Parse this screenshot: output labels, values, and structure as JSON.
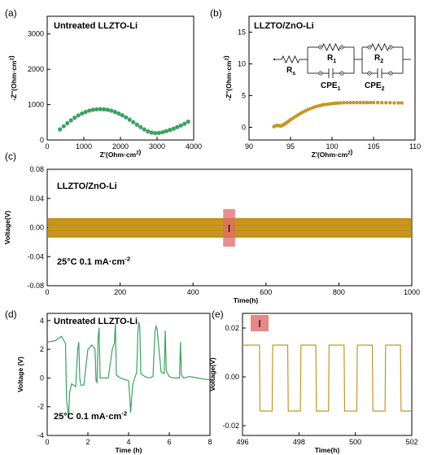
{
  "colors": {
    "green": "#3aa35f",
    "gold": "#c8961e",
    "highlight": "#e06a6a",
    "axis": "#000000"
  },
  "chart_data": [
    {
      "panel": "(a)",
      "type": "scatter",
      "title": "Untreated LLZTO-Li",
      "xlabel": "Z'(Ohm·cm²)",
      "ylabel": "-Z''(Ohm·cm²)",
      "xlim": [
        0,
        4000
      ],
      "ylim": [
        0,
        3500
      ],
      "xticks": [
        "0",
        "1000",
        "2000",
        "3000",
        "4000"
      ],
      "yticks": [
        "0",
        "1000",
        "2000",
        "3000"
      ],
      "series": [
        {
          "color": "#3aa35f",
          "x": [
            350,
            450,
            550,
            650,
            750,
            850,
            950,
            1050,
            1150,
            1250,
            1350,
            1450,
            1550,
            1650,
            1750,
            1850,
            1950,
            2050,
            2150,
            2250,
            2350,
            2450,
            2550,
            2650,
            2750,
            2850,
            2950,
            3050,
            3150,
            3250,
            3350,
            3450,
            3550,
            3650,
            3750,
            3850
          ],
          "y": [
            300,
            390,
            475,
            555,
            630,
            695,
            750,
            795,
            830,
            855,
            868,
            872,
            868,
            855,
            830,
            795,
            750,
            700,
            640,
            575,
            505,
            435,
            365,
            300,
            245,
            210,
            195,
            200,
            220,
            250,
            285,
            320,
            365,
            410,
            460,
            520
          ]
        }
      ]
    },
    {
      "panel": "(b)",
      "type": "scatter",
      "title": "LLZTO/ZnO-Li",
      "xlabel": "Z'(Ohm·cm²)",
      "ylabel": "-Z''(Ohm·cm²)",
      "xlim": [
        90,
        110
      ],
      "ylim": [
        -2,
        17.5
      ],
      "xticks": [
        "90",
        "95",
        "100",
        "105",
        "110"
      ],
      "yticks": [
        "0",
        "5",
        "10",
        "15"
      ],
      "circuit_labels": [
        "Rs",
        "R1",
        "R2",
        "CPE1",
        "CPE2"
      ],
      "series": [
        {
          "color": "#c8961e",
          "x": [
            93.0,
            93.2,
            93.4,
            93.6,
            93.8,
            94.0,
            94.2,
            94.4,
            94.6,
            94.8,
            95.0,
            95.3,
            95.6,
            95.9,
            96.2,
            96.5,
            96.8,
            97.1,
            97.4,
            97.7,
            98.0,
            98.3,
            98.6,
            98.9,
            99.2,
            99.5,
            99.8,
            100.1,
            100.4,
            100.7,
            101.0,
            101.4,
            101.8,
            102.2,
            102.6,
            103.0,
            103.4,
            103.8,
            104.2,
            104.6,
            105.0,
            105.5,
            106.0,
            106.5,
            107.0,
            107.5,
            108.0,
            108.4
          ],
          "y": [
            0.1,
            0.25,
            0.3,
            0.25,
            0.2,
            0.3,
            0.45,
            0.6,
            0.8,
            1.0,
            1.2,
            1.45,
            1.7,
            1.95,
            2.2,
            2.4,
            2.6,
            2.8,
            2.95,
            3.1,
            3.25,
            3.35,
            3.45,
            3.55,
            3.6,
            3.65,
            3.7,
            3.75,
            3.8,
            3.82,
            3.85,
            3.87,
            3.88,
            3.9,
            3.9,
            3.9,
            3.9,
            3.9,
            3.9,
            3.9,
            3.9,
            3.9,
            3.88,
            3.88,
            3.87,
            3.85,
            3.85,
            3.85
          ]
        }
      ]
    },
    {
      "panel": "(c)",
      "type": "line",
      "title": "LLZTO/ZnO-Li",
      "condition": "25°C 0.1 mA·cm⁻²",
      "xlabel": "Time(h)",
      "ylabel": "Voltage(V)",
      "xlim": [
        0,
        1000
      ],
      "ylim": [
        -0.08,
        0.08
      ],
      "xticks": [
        "0",
        "200",
        "400",
        "600",
        "800",
        "1000"
      ],
      "yticks": [
        "-0.08",
        "-0.04",
        "0.00",
        "0.04",
        "0.08"
      ],
      "band": {
        "x": [
          0,
          1000
        ],
        "upper": 0.013,
        "lower": -0.014,
        "color": "#c8961e"
      },
      "marker": {
        "label": "I",
        "x": [
          496,
          502
        ]
      }
    },
    {
      "panel": "(d)",
      "type": "line",
      "title": "Untreated LLZTO-Li",
      "condition": "25°C 0.1 mA·cm⁻²",
      "xlabel": "Time (h)",
      "ylabel": "Voltage (V)",
      "xlim": [
        0,
        8
      ],
      "ylim": [
        -4,
        4.5
      ],
      "xticks": [
        "0",
        "2",
        "4",
        "6",
        "8"
      ],
      "yticks": [
        "-4",
        "-2",
        "0",
        "2",
        "4"
      ],
      "series": [
        {
          "color": "#3aa35f",
          "x": [
            0.0,
            0.4,
            0.7,
            0.9,
            0.95,
            1.05,
            1.1,
            1.2,
            1.4,
            1.5,
            1.55,
            1.6,
            1.65,
            1.7,
            1.8,
            2.0,
            2.2,
            2.35,
            2.4,
            2.45,
            2.5,
            2.55,
            2.6,
            2.8,
            3.0,
            3.2,
            3.3,
            3.35,
            3.4,
            3.5,
            3.6,
            3.8,
            4.0,
            4.05,
            4.1,
            4.2,
            4.3,
            4.4,
            4.45,
            4.5,
            4.55,
            4.6,
            4.8,
            5.0,
            5.2,
            5.3,
            5.35,
            5.4,
            5.6,
            5.75,
            5.8,
            5.85,
            6.0,
            6.2,
            6.5,
            6.55,
            6.6,
            6.7,
            7.0,
            7.4,
            7.8,
            8.0
          ],
          "y": [
            2.5,
            2.6,
            2.9,
            2.4,
            -1.5,
            -2.8,
            -1.0,
            -0.4,
            -0.6,
            2.0,
            2.5,
            0.0,
            -0.5,
            -0.5,
            -0.5,
            2.0,
            2.3,
            2.0,
            -0.2,
            -0.3,
            2.8,
            3.5,
            0.0,
            0.0,
            0.0,
            2.0,
            2.4,
            3.8,
            0.2,
            0.1,
            0.0,
            -0.1,
            -0.2,
            -1.2,
            -2.4,
            -0.5,
            0.0,
            0.4,
            3.0,
            3.9,
            3.5,
            0.3,
            0.1,
            0.0,
            0.1,
            3.3,
            3.6,
            3.4,
            0.4,
            0.3,
            3.3,
            0.5,
            0.1,
            0.0,
            0.0,
            2.5,
            0.2,
            0.0,
            0.1,
            0.0,
            -0.1,
            -0.1
          ]
        }
      ]
    },
    {
      "panel": "(e)",
      "type": "line",
      "xlabel": "Time(h)",
      "ylabel": "Voltage(V)",
      "xlim": [
        496,
        502
      ],
      "ylim": [
        -0.024,
        0.026
      ],
      "xticks": [
        "496",
        "498",
        "500",
        "502"
      ],
      "yticks": [
        "-0.02",
        "0.00",
        "0.02"
      ],
      "marker_label": "I",
      "series": [
        {
          "color": "#c8961e",
          "x": [
            496.0,
            496.05,
            496.6,
            496.62,
            497.05,
            497.07,
            497.6,
            497.62,
            498.05,
            498.07,
            498.6,
            498.62,
            499.05,
            499.07,
            499.6,
            499.62,
            500.05,
            500.07,
            500.6,
            500.62,
            501.05,
            501.07,
            501.6,
            501.62,
            502.0
          ],
          "y": [
            0.013,
            0.013,
            0.013,
            -0.014,
            -0.014,
            0.013,
            0.013,
            -0.014,
            -0.014,
            0.013,
            0.013,
            -0.014,
            -0.014,
            0.013,
            0.013,
            -0.014,
            -0.014,
            0.013,
            0.013,
            -0.014,
            -0.014,
            0.013,
            0.013,
            -0.014,
            -0.014
          ]
        }
      ]
    }
  ]
}
